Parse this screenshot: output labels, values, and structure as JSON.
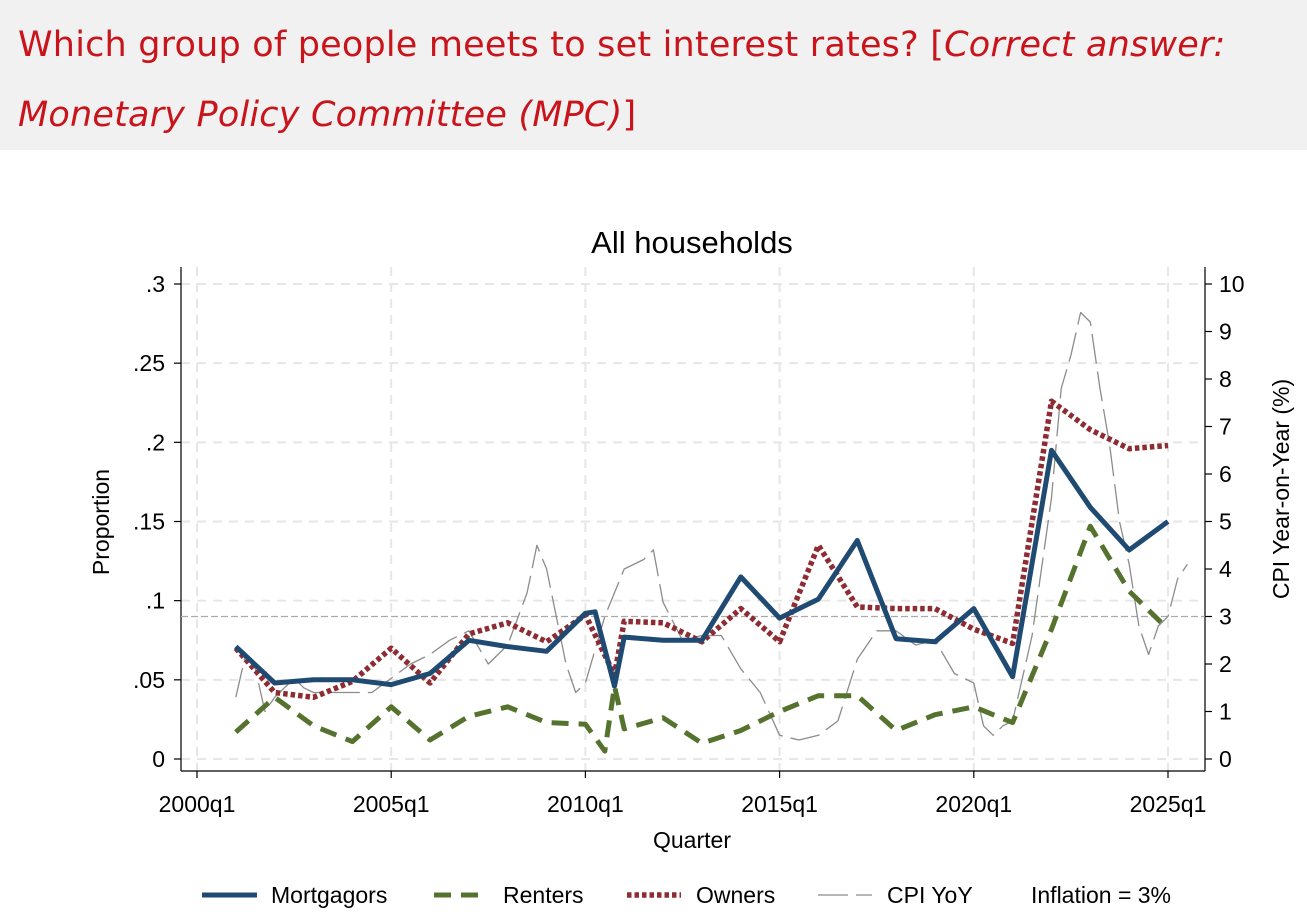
{
  "question": {
    "text": "Which group of people meets to set interest rates? [",
    "answer": "Correct answer: Monetary Policy Committee (MPC)",
    "close": "]",
    "color": "#c8141a"
  },
  "chart_data": {
    "type": "line",
    "title": "All households",
    "xlabel": "Quarter",
    "ylabel": "Proportion",
    "ylabel_right": "CPI Year-on-Year (%)",
    "xlim": [
      2000.0,
      2025.5
    ],
    "ylim": [
      0,
      0.3
    ],
    "ylim_right": [
      0,
      10
    ],
    "x_ticks": [
      2000,
      2005,
      2010,
      2015,
      2020,
      2025
    ],
    "x_tick_labels": [
      "2000q1",
      "2005q1",
      "2010q1",
      "2015q1",
      "2020q1",
      "2025q1"
    ],
    "y_ticks": [
      0,
      0.05,
      0.1,
      0.15,
      0.2,
      0.25,
      0.3
    ],
    "y_tick_labels": [
      "0",
      ".05",
      ".1",
      ".15",
      ".2",
      ".25",
      ".3"
    ],
    "y_right_ticks": [
      0,
      1,
      2,
      3,
      4,
      5,
      6,
      7,
      8,
      9,
      10
    ],
    "y_right_tick_labels": [
      "0",
      "1",
      "2",
      "3",
      "4",
      "5",
      "6",
      "7",
      "8",
      "9",
      "10"
    ],
    "grid": true,
    "legend_position": "bottom",
    "reference_line": {
      "label": "Inflation = 3%",
      "value": 3,
      "axis": "right",
      "color": "#aaaaaa"
    },
    "series": [
      {
        "name": "Mortgagors",
        "axis": "left",
        "color": "#1f4a72",
        "style": "solid",
        "x": [
          2001,
          2002,
          2003,
          2004,
          2005,
          2006,
          2007,
          2008,
          2009,
          2010,
          2010.25,
          2010.75,
          2011,
          2012,
          2013,
          2014,
          2015,
          2016,
          2017,
          2018,
          2019,
          2020,
          2021,
          2022,
          2023,
          2024,
          2025
        ],
        "values": [
          0.071,
          0.048,
          0.05,
          0.05,
          0.047,
          0.054,
          0.075,
          0.071,
          0.068,
          0.092,
          0.093,
          0.046,
          0.077,
          0.075,
          0.075,
          0.115,
          0.089,
          0.101,
          0.138,
          0.076,
          0.074,
          0.095,
          0.052,
          0.195,
          0.159,
          0.132,
          0.15
        ]
      },
      {
        "name": "Renters",
        "axis": "left",
        "color": "#55732e",
        "style": "dashed",
        "x": [
          2001,
          2002,
          2003,
          2004,
          2005,
          2006,
          2007,
          2008,
          2009,
          2010,
          2010.5,
          2010.75,
          2011,
          2012,
          2013,
          2014,
          2015,
          2016,
          2017,
          2018,
          2019,
          2020,
          2021,
          2022,
          2023,
          2024,
          2025
        ],
        "values": [
          0.017,
          0.039,
          0.021,
          0.011,
          0.033,
          0.012,
          0.027,
          0.033,
          0.023,
          0.022,
          0.005,
          0.046,
          0.019,
          0.026,
          0.01,
          0.018,
          0.03,
          0.04,
          0.04,
          0.018,
          0.028,
          0.033,
          0.023,
          0.082,
          0.147,
          0.106,
          0.082
        ]
      },
      {
        "name": "Owners",
        "axis": "left",
        "color": "#8e2c33",
        "style": "dotted",
        "x": [
          2001,
          2002,
          2003,
          2004,
          2005,
          2006,
          2007,
          2008,
          2009,
          2010,
          2010.75,
          2011,
          2012,
          2013,
          2014,
          2015,
          2016,
          2017,
          2018,
          2019,
          2020,
          2021,
          2022,
          2023,
          2024,
          2025
        ],
        "values": [
          0.07,
          0.042,
          0.039,
          0.049,
          0.07,
          0.048,
          0.079,
          0.086,
          0.074,
          0.091,
          0.053,
          0.087,
          0.086,
          0.074,
          0.095,
          0.074,
          0.135,
          0.096,
          0.095,
          0.095,
          0.082,
          0.073,
          0.226,
          0.208,
          0.196,
          0.198
        ]
      },
      {
        "name": "CPI YoY",
        "axis": "right",
        "color": "#8c8c8c",
        "style": "longdash",
        "x": [
          2001.0,
          2001.25,
          2001.5,
          2001.75,
          2002.0,
          2002.25,
          2002.5,
          2002.75,
          2003.0,
          2003.5,
          2004.0,
          2004.5,
          2005.0,
          2005.5,
          2006.0,
          2006.5,
          2007.0,
          2007.5,
          2008.0,
          2008.5,
          2008.75,
          2009.0,
          2009.25,
          2009.5,
          2009.75,
          2010.0,
          2010.5,
          2011.0,
          2011.5,
          2011.75,
          2012.0,
          2012.5,
          2013.0,
          2013.5,
          2014.0,
          2014.5,
          2015.0,
          2015.5,
          2016.0,
          2016.5,
          2017.0,
          2017.5,
          2018.0,
          2018.5,
          2019.0,
          2019.5,
          2020.0,
          2020.25,
          2020.5,
          2020.75,
          2021.0,
          2021.5,
          2022.0,
          2022.25,
          2022.5,
          2022.75,
          2023.0,
          2023.25,
          2023.5,
          2023.75,
          2024.0,
          2024.25,
          2024.5,
          2024.75,
          2025.0,
          2025.25,
          2025.5
        ],
        "values": [
          1.3,
          2.2,
          1.9,
          1.0,
          1.3,
          1.5,
          1.7,
          1.5,
          1.4,
          1.4,
          1.4,
          1.4,
          1.7,
          2.0,
          2.2,
          2.5,
          2.7,
          2.0,
          2.4,
          3.5,
          4.5,
          4.0,
          3.0,
          2.0,
          1.4,
          1.6,
          3.0,
          4.0,
          4.2,
          4.4,
          3.3,
          2.5,
          2.6,
          2.6,
          1.9,
          1.4,
          0.5,
          0.4,
          0.5,
          0.8,
          2.1,
          2.7,
          2.7,
          2.4,
          2.5,
          1.8,
          1.6,
          0.7,
          0.5,
          0.7,
          0.8,
          2.6,
          5.5,
          7.8,
          8.5,
          9.4,
          9.2,
          7.8,
          6.6,
          5.0,
          4.1,
          2.8,
          2.2,
          2.8,
          3.0,
          3.8,
          4.1
        ]
      }
    ],
    "legend": [
      {
        "label": "Mortgagors",
        "series": "Mortgagors"
      },
      {
        "label": "Renters",
        "series": "Renters"
      },
      {
        "label": "Owners",
        "series": "Owners"
      },
      {
        "label": "CPI YoY",
        "series": "CPI YoY"
      },
      {
        "label": "Inflation = 3%",
        "series": "reference"
      }
    ]
  }
}
